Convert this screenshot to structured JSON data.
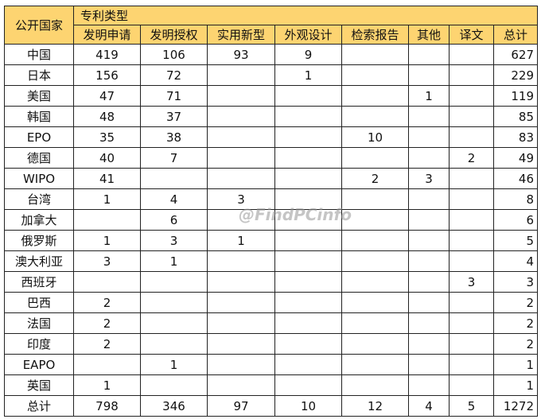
{
  "header": {
    "country_label": "公开国家",
    "group_label": "专利类型",
    "columns": [
      "发明申请",
      "发明授权",
      "实用新型",
      "外观设计",
      "检索报告",
      "其他",
      "译文",
      "总计"
    ]
  },
  "rows": [
    {
      "country": "中国",
      "values": [
        "419",
        "106",
        "93",
        "9",
        "",
        "",
        "",
        "627"
      ]
    },
    {
      "country": "日本",
      "values": [
        "156",
        "72",
        "",
        "1",
        "",
        "",
        "",
        "229"
      ]
    },
    {
      "country": "美国",
      "values": [
        "47",
        "71",
        "",
        "",
        "",
        "1",
        "",
        "119"
      ]
    },
    {
      "country": "韩国",
      "values": [
        "48",
        "37",
        "",
        "",
        "",
        "",
        "",
        "85"
      ]
    },
    {
      "country": "EPO",
      "values": [
        "35",
        "38",
        "",
        "",
        "10",
        "",
        "",
        "83"
      ]
    },
    {
      "country": "德国",
      "values": [
        "40",
        "7",
        "",
        "",
        "",
        "",
        "2",
        "49"
      ]
    },
    {
      "country": "WIPO",
      "values": [
        "41",
        "",
        "",
        "",
        "2",
        "3",
        "",
        "46"
      ]
    },
    {
      "country": "台湾",
      "values": [
        "1",
        "4",
        "3",
        "",
        "",
        "",
        "",
        "8"
      ]
    },
    {
      "country": "加拿大",
      "values": [
        "",
        "6",
        "",
        "",
        "",
        "",
        "",
        "6"
      ]
    },
    {
      "country": "俄罗斯",
      "values": [
        "1",
        "3",
        "1",
        "",
        "",
        "",
        "",
        "5"
      ]
    },
    {
      "country": "澳大利亚",
      "values": [
        "3",
        "1",
        "",
        "",
        "",
        "",
        "",
        "4"
      ]
    },
    {
      "country": "西班牙",
      "values": [
        "",
        "",
        "",
        "",
        "",
        "",
        "3",
        "3"
      ]
    },
    {
      "country": "巴西",
      "values": [
        "2",
        "",
        "",
        "",
        "",
        "",
        "",
        "2"
      ]
    },
    {
      "country": "法国",
      "values": [
        "2",
        "",
        "",
        "",
        "",
        "",
        "",
        "2"
      ]
    },
    {
      "country": "印度",
      "values": [
        "2",
        "",
        "",
        "",
        "",
        "",
        "",
        "2"
      ]
    },
    {
      "country": "EAPO",
      "values": [
        "",
        "1",
        "",
        "",
        "",
        "",
        "",
        "1"
      ]
    },
    {
      "country": "英国",
      "values": [
        "1",
        "",
        "",
        "",
        "",
        "",
        "",
        "1"
      ]
    },
    {
      "country": "总计",
      "values": [
        "798",
        "346",
        "97",
        "10",
        "12",
        "4",
        "5",
        "1272"
      ]
    }
  ],
  "watermark": "@FindPCinfo",
  "colors": {
    "header_bg": "#fdd471",
    "border": "#222222"
  }
}
